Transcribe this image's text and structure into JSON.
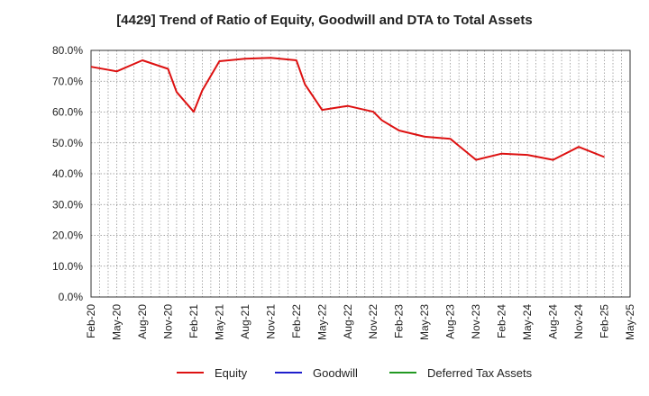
{
  "chart_data": {
    "type": "line",
    "title": "[4429]  Trend of Ratio of Equity, Goodwill and DTA to Total Assets",
    "xlabel": "",
    "ylabel": "",
    "ylim": [
      0,
      80
    ],
    "y_ticks": [
      0,
      10,
      20,
      30,
      40,
      50,
      60,
      70,
      80
    ],
    "y_tick_labels": [
      "0.0%",
      "10.0%",
      "20.0%",
      "30.0%",
      "40.0%",
      "50.0%",
      "60.0%",
      "70.0%",
      "80.0%"
    ],
    "x_tick_labels": [
      "Feb-20",
      "May-20",
      "Aug-20",
      "Nov-20",
      "Feb-21",
      "May-21",
      "Aug-21",
      "Nov-21",
      "Feb-22",
      "May-22",
      "Aug-22",
      "Nov-22",
      "Feb-23",
      "May-23",
      "Aug-23",
      "Nov-23",
      "Feb-24",
      "May-24",
      "Aug-24",
      "Nov-24",
      "Feb-25",
      "May-25"
    ],
    "grid": true,
    "legend_position": "bottom",
    "series": [
      {
        "name": "Equity",
        "color": "#dd1111",
        "x": [
          "Feb-20",
          "May-20",
          "Aug-20",
          "Nov-20",
          "Dec-20",
          "Feb-21",
          "Mar-21",
          "May-21",
          "Aug-21",
          "Nov-21",
          "Feb-22",
          "Mar-22",
          "May-22",
          "Aug-22",
          "Nov-22",
          "Dec-22",
          "Feb-23",
          "May-23",
          "Aug-23",
          "Nov-23",
          "Feb-24",
          "May-24",
          "Aug-24",
          "Nov-24",
          "Feb-25"
        ],
        "values": [
          74.7,
          73.2,
          76.8,
          74.0,
          66.5,
          60.1,
          67.0,
          76.5,
          77.3,
          77.6,
          76.8,
          69.0,
          60.7,
          62.0,
          60.1,
          57.3,
          54.0,
          52.0,
          51.3,
          44.5,
          46.5,
          46.1,
          44.5,
          48.7,
          45.4
        ]
      },
      {
        "name": "Goodwill",
        "color": "#1f1fcc",
        "x": [],
        "values": []
      },
      {
        "name": "Deferred Tax Assets",
        "color": "#229922",
        "x": [],
        "values": []
      }
    ]
  }
}
